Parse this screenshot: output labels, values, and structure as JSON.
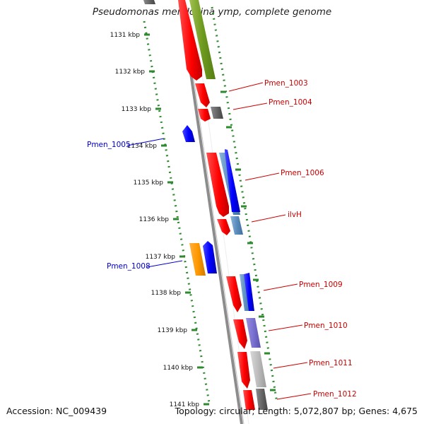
{
  "title": "Pseudomonas mendocina ymp, complete genome",
  "footer": {
    "accession": "Accession: NC_009439",
    "summary": "Topology: circular; Length: 5,072,807 bp; Genes: 4,675"
  },
  "colors": {
    "backbone": "#8c8c8c",
    "rna": "#ff0000",
    "tick": "#2f8a2f",
    "gene_label_forward": "#cc0000",
    "gene_label_reverse": "#0000cc"
  },
  "kbp_ticks": [
    "1131 kbp",
    "1132 kbp",
    "1133 kbp",
    "1134 kbp",
    "1135 kbp",
    "1136 kbp",
    "1137 kbp",
    "1138 kbp",
    "1139 kbp",
    "1140 kbp",
    "1141 kbp"
  ],
  "gene_labels": [
    {
      "text": "Pmen_1003",
      "side": "right"
    },
    {
      "text": "Pmen_1004",
      "side": "right"
    },
    {
      "text": "Pmen_1005",
      "side": "left"
    },
    {
      "text": "Pmen_1006",
      "side": "right"
    },
    {
      "text": "ilvH",
      "side": "right"
    },
    {
      "text": "Pmen_1008",
      "side": "left"
    },
    {
      "text": "Pmen_1009",
      "side": "right"
    },
    {
      "text": "Pmen_1010",
      "side": "right"
    },
    {
      "text": "Pmen_1011",
      "side": "right"
    },
    {
      "text": "Pmen_1012",
      "side": "right"
    }
  ]
}
